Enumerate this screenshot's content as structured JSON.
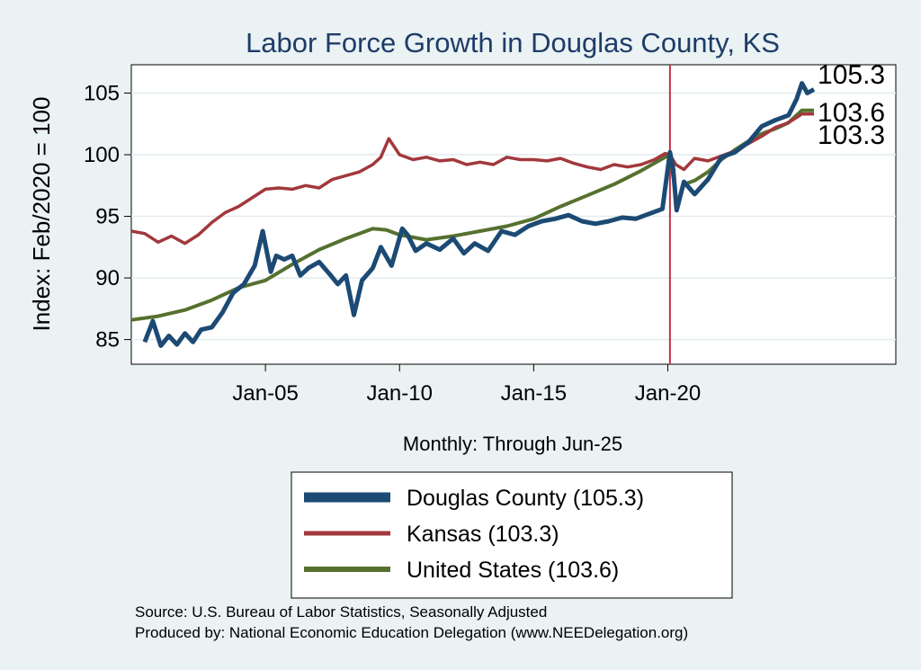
{
  "chart_data": {
    "type": "line",
    "title": "Labor Force Growth in Douglas  County, KS",
    "ylabel": "Index: Feb/2020 = 100",
    "xlabel": "Monthly: Through Jun-25",
    "ylim": [
      83.0,
      107.3
    ],
    "xlim": [
      2000.0,
      2028.5
    ],
    "yticks": [
      85,
      90,
      95,
      100,
      105
    ],
    "ytick_labels": [
      "85",
      "90",
      "95",
      "100",
      "105"
    ],
    "xticks": [
      2005,
      2010,
      2015,
      2020
    ],
    "xtick_labels": [
      "Jan-05",
      "Jan-10",
      "Jan-15",
      "Jan-20"
    ],
    "vline_x": 2020.08,
    "grid": true,
    "series": [
      {
        "name": "Douglas  County",
        "legend_label": "Douglas  County (105.3)",
        "end_value": "105.3",
        "color": "#1c4a74",
        "x": [
          2000.5,
          2000.8,
          2001.1,
          2001.4,
          2001.7,
          2002.0,
          2002.3,
          2002.6,
          2003.0,
          2003.4,
          2003.8,
          2004.2,
          2004.6,
          2004.9,
          2005.2,
          2005.4,
          2005.7,
          2006.0,
          2006.3,
          2006.6,
          2007.0,
          2007.4,
          2007.7,
          2008.0,
          2008.3,
          2008.6,
          2009.0,
          2009.3,
          2009.7,
          2010.1,
          2010.3,
          2010.6,
          2011.0,
          2011.5,
          2012.0,
          2012.4,
          2012.8,
          2013.3,
          2013.8,
          2014.3,
          2014.8,
          2015.3,
          2015.8,
          2016.3,
          2016.8,
          2017.3,
          2017.8,
          2018.3,
          2018.8,
          2019.3,
          2019.8,
          2020.08,
          2020.2,
          2020.33,
          2020.6,
          2021.0,
          2021.5,
          2022.0,
          2022.5,
          2023.0,
          2023.5,
          2024.0,
          2024.5,
          2024.8,
          2025.0,
          2025.2,
          2025.45
        ],
        "values": [
          84.8,
          86.5,
          84.5,
          85.3,
          84.6,
          85.5,
          84.8,
          85.8,
          86.0,
          87.2,
          88.8,
          89.5,
          91.0,
          93.8,
          90.5,
          91.8,
          91.5,
          91.8,
          90.2,
          90.8,
          91.3,
          90.3,
          89.5,
          90.2,
          87.0,
          89.8,
          90.8,
          92.5,
          91.0,
          94.0,
          93.5,
          92.2,
          92.8,
          92.3,
          93.2,
          92.0,
          92.8,
          92.2,
          93.8,
          93.5,
          94.2,
          94.6,
          94.8,
          95.1,
          94.6,
          94.4,
          94.6,
          94.9,
          94.8,
          95.2,
          95.6,
          100.2,
          98.8,
          95.5,
          97.8,
          96.8,
          98.0,
          99.8,
          100.2,
          101.0,
          102.3,
          102.8,
          103.2,
          104.5,
          105.8,
          105.0,
          105.3
        ]
      },
      {
        "name": "Kansas",
        "legend_label": "Kansas (103.3)",
        "end_value": "103.3",
        "color": "#a2383c",
        "x": [
          2000.0,
          2000.5,
          2001.0,
          2001.5,
          2002.0,
          2002.5,
          2003.0,
          2003.5,
          2004.0,
          2004.5,
          2005.0,
          2005.5,
          2006.0,
          2006.5,
          2007.0,
          2007.5,
          2008.0,
          2008.5,
          2009.0,
          2009.3,
          2009.6,
          2010.0,
          2010.5,
          2011.0,
          2011.5,
          2012.0,
          2012.5,
          2013.0,
          2013.5,
          2014.0,
          2014.5,
          2015.0,
          2015.5,
          2016.0,
          2016.5,
          2017.0,
          2017.5,
          2018.0,
          2018.5,
          2019.0,
          2019.5,
          2019.9,
          2020.08,
          2020.3,
          2020.6,
          2021.0,
          2021.5,
          2022.0,
          2022.5,
          2023.0,
          2023.5,
          2024.0,
          2024.5,
          2025.0,
          2025.45
        ],
        "values": [
          93.8,
          93.6,
          92.9,
          93.4,
          92.8,
          93.5,
          94.5,
          95.3,
          95.8,
          96.5,
          97.2,
          97.3,
          97.2,
          97.5,
          97.3,
          98.0,
          98.3,
          98.6,
          99.2,
          99.8,
          101.3,
          100.0,
          99.6,
          99.8,
          99.5,
          99.6,
          99.2,
          99.4,
          99.2,
          99.8,
          99.6,
          99.6,
          99.5,
          99.7,
          99.3,
          99.0,
          98.8,
          99.2,
          99.0,
          99.2,
          99.6,
          100.1,
          100.0,
          99.2,
          98.8,
          99.7,
          99.5,
          99.9,
          100.3,
          100.9,
          101.5,
          102.2,
          102.6,
          103.3,
          103.3
        ]
      },
      {
        "name": "United States",
        "legend_label": "United States (103.6)",
        "end_value": "103.6",
        "color": "#56712f",
        "x": [
          2000.0,
          2001.0,
          2002.0,
          2003.0,
          2004.0,
          2005.0,
          2006.0,
          2007.0,
          2008.0,
          2009.0,
          2009.5,
          2010.0,
          2010.5,
          2011.0,
          2012.0,
          2013.0,
          2014.0,
          2015.0,
          2016.0,
          2017.0,
          2018.0,
          2019.0,
          2019.9,
          2020.08,
          2020.25,
          2020.33,
          2020.6,
          2021.0,
          2021.5,
          2022.0,
          2022.5,
          2023.0,
          2023.5,
          2024.0,
          2024.5,
          2025.0,
          2025.45
        ],
        "values": [
          86.6,
          86.9,
          87.4,
          88.2,
          89.2,
          89.8,
          91.1,
          92.3,
          93.2,
          94.0,
          93.9,
          93.5,
          93.3,
          93.1,
          93.4,
          93.8,
          94.2,
          94.8,
          95.8,
          96.7,
          97.6,
          98.7,
          99.8,
          100.0,
          97.5,
          95.8,
          97.6,
          97.9,
          98.6,
          99.6,
          100.4,
          101.1,
          101.7,
          102.1,
          102.6,
          103.6,
          103.6
        ]
      }
    ]
  },
  "source_note": "Source: U.S. Bureau of Labor Statistics, Seasonally Adjusted",
  "producer_note": "Produced by: National Economic Education Delegation (www.NEEDelegation.org)"
}
